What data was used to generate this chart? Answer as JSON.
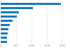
{
  "values": [
    1950,
    1050,
    600,
    520,
    390,
    290,
    260,
    230,
    210,
    200
  ],
  "bar_color": "#1a7abf",
  "background_color": "#ffffff",
  "xlim": [
    0,
    2200
  ],
  "figsize": [
    1.0,
    0.71
  ],
  "dpi": 100
}
